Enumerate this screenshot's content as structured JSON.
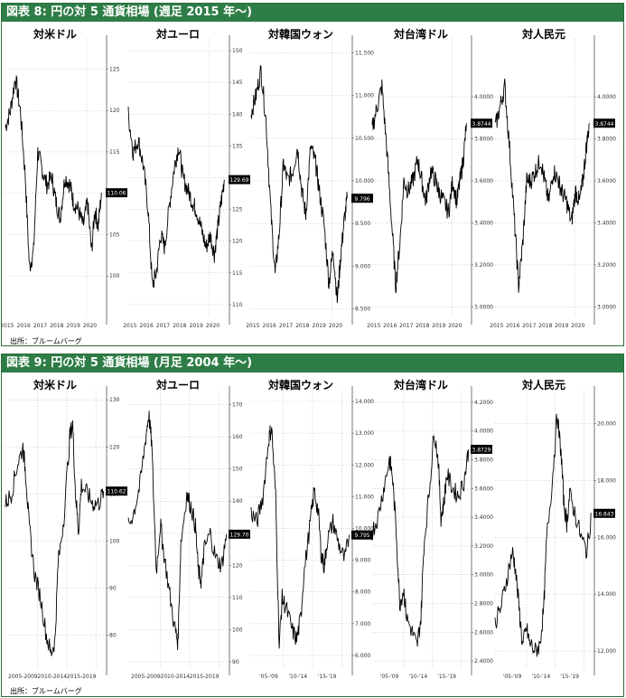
{
  "panels": [
    {
      "title": "図表 8: 円の対 5 通貨相場 (週足 2015 年〜)",
      "source": "出所：ブルームバーグ",
      "chart_data": [
        {
          "type": "line",
          "title": "対米ドル",
          "ylim": [
            95,
            128
          ],
          "yticks": [
            "125",
            "120",
            "115",
            "110",
            "105",
            "100"
          ],
          "ytick_values": [
            125,
            120,
            115,
            110,
            105,
            100
          ],
          "xticks": [
            "2015",
            "2016",
            "2017",
            "2018",
            "2019",
            "2020"
          ],
          "last_label": "110.06",
          "x": [
            2015,
            2015.3,
            2015.6,
            2015.9,
            2016.2,
            2016.45,
            2016.7,
            2016.95,
            2017.2,
            2017.5,
            2017.8,
            2018.05,
            2018.3,
            2018.6,
            2018.9,
            2019.1,
            2019.4,
            2019.7,
            2019.95,
            2020.2,
            2020.4,
            2020.6,
            2020.8
          ],
          "values": [
            118,
            120,
            124,
            120,
            112,
            101,
            103,
            115,
            113,
            111,
            112,
            109,
            107,
            112,
            111,
            109,
            108,
            106,
            109,
            103,
            108,
            106,
            110.06
          ]
        },
        {
          "type": "line",
          "title": "対ユーロ",
          "ylim": [
            108,
            151
          ],
          "yticks": [
            "150",
            "145",
            "140",
            "135",
            "130",
            "125",
            "120",
            "115",
            "110"
          ],
          "ytick_values": [
            150,
            145,
            140,
            135,
            130,
            125,
            120,
            115,
            110
          ],
          "xticks": [
            "2015",
            "2016",
            "2017",
            "2018",
            "2019",
            "2020"
          ],
          "last_label": "129.69",
          "x": [
            2015,
            2015.3,
            2015.6,
            2015.9,
            2016.2,
            2016.45,
            2016.7,
            2016.95,
            2017.2,
            2017.5,
            2017.8,
            2018.05,
            2018.3,
            2018.6,
            2018.9,
            2019.1,
            2019.4,
            2019.7,
            2019.95,
            2020.2,
            2020.4,
            2020.6,
            2020.8
          ],
          "values": [
            140,
            134,
            136,
            132,
            125,
            113,
            115,
            121,
            119,
            126,
            132,
            135,
            130,
            128,
            126,
            125,
            122,
            119,
            121,
            118,
            122,
            126,
            129.69
          ]
        },
        {
          "type": "line",
          "title": "対韓国ウォン",
          "ylim": [
            8.4,
            11.6
          ],
          "yticks": [
            "11.500",
            "11.000",
            "10.500",
            "10.000",
            "9.500",
            "9.000",
            "8.500"
          ],
          "ytick_values": [
            11.5,
            11.0,
            10.5,
            10.0,
            9.5,
            9.0,
            8.5
          ],
          "xticks": [
            "2015",
            "2016",
            "2017",
            "2018",
            "2019",
            "2020"
          ],
          "last_label": "9.796",
          "x": [
            2015,
            2015.3,
            2015.6,
            2015.9,
            2016.2,
            2016.45,
            2016.7,
            2016.95,
            2017.2,
            2017.5,
            2017.8,
            2018.05,
            2018.3,
            2018.6,
            2018.9,
            2019.1,
            2019.4,
            2019.7,
            2019.95,
            2020.2,
            2020.4,
            2020.6,
            2020.8
          ],
          "values": [
            10.8,
            11.0,
            11.3,
            10.7,
            9.6,
            8.9,
            9.4,
            10.2,
            10.0,
            10.1,
            10.4,
            9.9,
            9.6,
            10.4,
            10.2,
            9.9,
            9.5,
            8.8,
            9.2,
            8.6,
            9.1,
            9.5,
            9.796
          ]
        },
        {
          "type": "line",
          "title": "対台湾ドル",
          "ylim": [
            2.95,
            4.25
          ],
          "yticks": [
            "4.0000",
            "3.8000",
            "3.6000",
            "3.4000",
            "3.2000",
            "3.0000"
          ],
          "ytick_values": [
            4.0,
            3.8,
            3.6,
            3.4,
            3.2,
            3.0
          ],
          "xticks": [
            "2015",
            "2016",
            "2017",
            "2018",
            "2019",
            "2020"
          ],
          "last_label": "3.8744",
          "x": [
            2015,
            2015.3,
            2015.6,
            2015.9,
            2016.2,
            2016.45,
            2016.7,
            2016.95,
            2017.2,
            2017.5,
            2017.8,
            2018.05,
            2018.3,
            2018.6,
            2018.9,
            2019.1,
            2019.4,
            2019.7,
            2019.95,
            2020.2,
            2020.4,
            2020.6,
            2020.8
          ],
          "values": [
            3.85,
            3.95,
            4.05,
            3.75,
            3.4,
            3.1,
            3.3,
            3.6,
            3.55,
            3.6,
            3.7,
            3.6,
            3.5,
            3.65,
            3.6,
            3.55,
            3.5,
            3.45,
            3.6,
            3.5,
            3.6,
            3.7,
            3.8744
          ]
        },
        {
          "type": "line",
          "title": "対人民元",
          "ylim": [
            2.95,
            4.25
          ],
          "yticks": [
            "4.0000",
            "3.8000",
            "3.6000",
            "3.4000",
            "3.2000",
            "3.0000"
          ],
          "ytick_values": [
            4.0,
            3.8,
            3.6,
            3.4,
            3.2,
            3.0
          ],
          "xticks": [
            "2015",
            "2016",
            "2017",
            "2018",
            "2019",
            "2020"
          ],
          "last_label": "3.8744",
          "x": [
            2015,
            2015.3,
            2015.6,
            2015.9,
            2016.2,
            2016.45,
            2016.7,
            2016.95,
            2017.2,
            2017.5,
            2017.8,
            2018.05,
            2018.3,
            2018.6,
            2018.9,
            2019.1,
            2019.4,
            2019.7,
            2019.95,
            2020.2,
            2020.4,
            2020.6,
            2020.8
          ],
          "values": [
            3.85,
            3.95,
            4.05,
            3.75,
            3.4,
            3.1,
            3.3,
            3.6,
            3.6,
            3.65,
            3.7,
            3.6,
            3.5,
            3.65,
            3.6,
            3.55,
            3.5,
            3.4,
            3.55,
            3.5,
            3.6,
            3.75,
            3.8744
          ]
        }
      ]
    },
    {
      "title": "図表 9: 円の対 5 通貨相場 (月足 2004 年〜)",
      "source": "出所：ブルームバーグ",
      "chart_data": [
        {
          "type": "line",
          "title": "対米ドル",
          "ylim": [
            73,
            131
          ],
          "yticks": [
            "130",
            "120",
            "110",
            "100",
            "90",
            "80"
          ],
          "ytick_values": [
            130,
            120,
            110,
            100,
            90,
            80
          ],
          "xticks": [
            "2005-2009",
            "2010-2014",
            "2015-2019"
          ],
          "xtick_values": [
            2007,
            2012,
            2017
          ],
          "last_label": "110.62",
          "x": [
            2004,
            2005,
            2006,
            2007,
            2007.5,
            2008,
            2009,
            2010,
            2011,
            2011.8,
            2012.5,
            2013,
            2014,
            2015,
            2015.5,
            2016,
            2016.5,
            2017,
            2018,
            2019,
            2020,
            2020.8
          ],
          "values": [
            108,
            110,
            116,
            120,
            114,
            104,
            93,
            88,
            80,
            76,
            79,
            95,
            105,
            122,
            125,
            110,
            102,
            112,
            110,
            108,
            108,
            110.62
          ]
        },
        {
          "type": "line",
          "title": "対ユーロ",
          "ylim": [
            88,
            173
          ],
          "yticks": [
            "170",
            "160",
            "150",
            "140",
            "130",
            "120",
            "110",
            "100",
            "90"
          ],
          "ytick_values": [
            170,
            160,
            150,
            140,
            130,
            120,
            110,
            100,
            90
          ],
          "xticks": [
            "2005-2009",
            "2010-2014",
            "2015-2019"
          ],
          "xtick_values": [
            2007,
            2012,
            2017
          ],
          "last_label": "129.70",
          "x": [
            2004,
            2005,
            2006,
            2007,
            2007.5,
            2008,
            2008.8,
            2009.5,
            2010,
            2011,
            2012,
            2012.5,
            2013,
            2014,
            2014.8,
            2015.5,
            2016,
            2016.5,
            2017,
            2018,
            2019,
            2020,
            2020.8
          ],
          "values": [
            132,
            137,
            145,
            160,
            167,
            158,
            118,
            133,
            125,
            112,
            100,
            96,
            127,
            142,
            138,
            132,
            118,
            115,
            125,
            130,
            122,
            120,
            129.7
          ]
        },
        {
          "type": "line",
          "title": "対韓国ウォン",
          "ylim": [
            5.6,
            14.2
          ],
          "yticks": [
            "14.000",
            "13.000",
            "12.000",
            "11.000",
            "10.000",
            "9.000",
            "8.000",
            "7.000",
            "6.000"
          ],
          "ytick_values": [
            14,
            13,
            12,
            11,
            10,
            9,
            8,
            7,
            6
          ],
          "xticks": [
            "'05-'09",
            "'10-'14",
            "'15-'19"
          ],
          "xtick_values": [
            2007,
            2012,
            2017
          ],
          "last_label": "9.795",
          "x": [
            2004,
            2005,
            2006,
            2007,
            2007.5,
            2008.2,
            2008.8,
            2009.3,
            2010,
            2011,
            2011.8,
            2012.5,
            2013,
            2014,
            2014.8,
            2015.5,
            2016,
            2016.5,
            2017,
            2018,
            2019,
            2020,
            2020.8
          ],
          "values": [
            10.5,
            10.2,
            11.0,
            12.8,
            13.2,
            11.0,
            6.3,
            7.8,
            7.5,
            6.8,
            6.5,
            7.2,
            8.5,
            10.0,
            11.2,
            10.5,
            9.2,
            8.8,
            9.6,
            10.2,
            9.5,
            9.0,
            9.795
          ]
        },
        {
          "type": "line",
          "title": "対台湾ドル",
          "ylim": [
            2.35,
            4.25
          ],
          "yticks": [
            "4.2000",
            "4.0000",
            "3.8000",
            "3.6000",
            "3.4000",
            "3.2000",
            "3.0000",
            "2.8000",
            "2.6000",
            "2.4000"
          ],
          "ytick_values": [
            4.2,
            4.0,
            3.8,
            3.6,
            3.4,
            3.2,
            3.0,
            2.8,
            2.6,
            2.4
          ],
          "xticks": [
            "'05-'09",
            "'10-'14",
            "'15-'19"
          ],
          "xtick_values": [
            2007,
            2012,
            2017
          ],
          "last_label": "3.8729",
          "x": [
            2004,
            2005,
            2006,
            2007,
            2007.5,
            2008.2,
            2008.8,
            2009.5,
            2010,
            2011,
            2011.8,
            2012.5,
            2013,
            2014,
            2014.8,
            2015.5,
            2016,
            2016.5,
            2017,
            2018,
            2019,
            2020,
            2020.8
          ],
          "values": [
            3.3,
            3.4,
            3.6,
            3.8,
            3.7,
            3.3,
            2.8,
            2.9,
            2.7,
            2.6,
            2.5,
            2.7,
            3.2,
            3.6,
            4.0,
            3.8,
            3.4,
            3.5,
            3.7,
            3.6,
            3.55,
            3.65,
            3.8729
          ]
        },
        {
          "type": "line",
          "title": "対人民元",
          "ylim": [
            11.4,
            21
          ],
          "yticks": [
            "20.000",
            "18.000",
            "16.000",
            "14.000",
            "12.000"
          ],
          "ytick_values": [
            20,
            18,
            16,
            14,
            12
          ],
          "xticks": [
            "'05-'09",
            "'10-'14",
            "'15-'19"
          ],
          "xtick_values": [
            2007,
            2012,
            2017
          ],
          "last_label": "16.843",
          "x": [
            2004,
            2005,
            2006,
            2007,
            2007.5,
            2008.2,
            2008.8,
            2009.5,
            2010,
            2011,
            2011.8,
            2012.5,
            2013,
            2014,
            2014.8,
            2015.5,
            2016,
            2016.5,
            2017,
            2018,
            2019,
            2020,
            2020.8
          ],
          "values": [
            13,
            13.5,
            14.5,
            15.5,
            15,
            13.5,
            12.2,
            12.8,
            12.3,
            12.0,
            12.2,
            13.5,
            16,
            18,
            20.3,
            19,
            17.2,
            16.5,
            17.5,
            16.8,
            16,
            15.5,
            16.843
          ]
        }
      ]
    }
  ]
}
